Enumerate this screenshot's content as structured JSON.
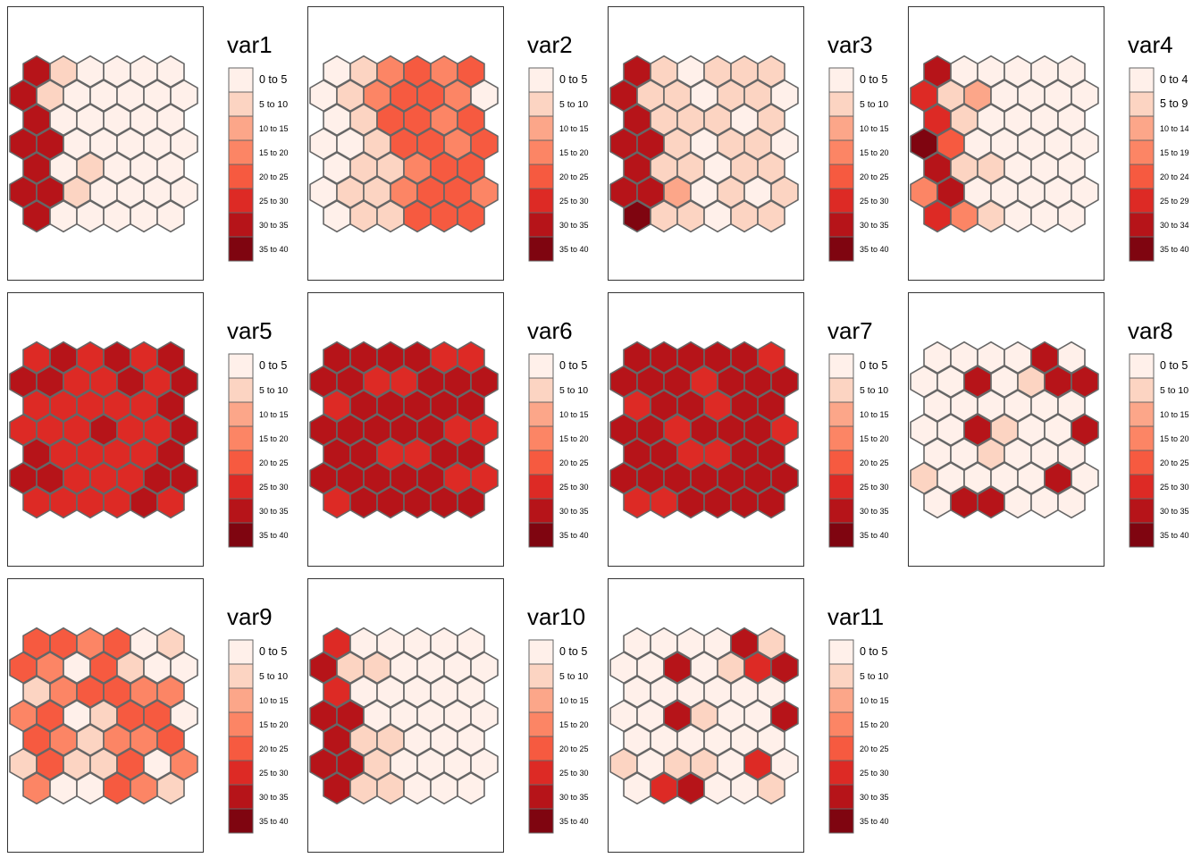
{
  "legend_bins": [
    "0 to 5",
    "5 to 10",
    "10 to 15",
    "15 to 20",
    "20 to 25",
    "25 to 30",
    "30 to 35",
    "35 to 40"
  ],
  "palette": [
    "#fff0ea",
    "#fcd4c2",
    "#fca689",
    "#fc8565",
    "#f65a40",
    "#dd2a25",
    "#b61419",
    "#7f0510"
  ],
  "chart_data": [
    {
      "type": "heatmap",
      "title": "var1",
      "legend": [
        "0 to 5",
        "5 to 10",
        "10 to 15",
        "15 to 20",
        "20 to 25",
        "25 to 30",
        "30 to 35",
        "35 to 40"
      ],
      "rows": [
        [
          6,
          1,
          0,
          0,
          0,
          0,
          0
        ],
        [
          6,
          1,
          0,
          0,
          0,
          0,
          0
        ],
        [
          6,
          0,
          0,
          0,
          0,
          0,
          0
        ],
        [
          6,
          6,
          0,
          0,
          0,
          0,
          0
        ],
        [
          6,
          0,
          1,
          0,
          0,
          0,
          0
        ],
        [
          6,
          6,
          1,
          0,
          0,
          0,
          0
        ],
        [
          6,
          0,
          0,
          0,
          0,
          0,
          0
        ]
      ]
    },
    {
      "type": "heatmap",
      "title": "var2",
      "legend": [
        "0 to 5",
        "5 to 10",
        "10 to 15",
        "15 to 20",
        "20 to 25",
        "25 to 30",
        "30 to 35",
        "35 to 40"
      ],
      "rows": [
        [
          0,
          1,
          3,
          4,
          3,
          4,
          0
        ],
        [
          0,
          1,
          3,
          4,
          4,
          3,
          0
        ],
        [
          0,
          1,
          4,
          4,
          3,
          4,
          0
        ],
        [
          0,
          0,
          1,
          4,
          4,
          3,
          4
        ],
        [
          0,
          1,
          1,
          3,
          4,
          4,
          0
        ],
        [
          0,
          1,
          1,
          3,
          4,
          4,
          3
        ],
        [
          0,
          1,
          1,
          4,
          4,
          4,
          0
        ]
      ]
    },
    {
      "type": "heatmap",
      "title": "var3",
      "legend": [
        "0 to 5",
        "5 to 10",
        "10 to 15",
        "15 to 20",
        "20 to 25",
        "25 to 30",
        "30 to 35",
        "35 to 40"
      ],
      "rows": [
        [
          6,
          1,
          0,
          1,
          1,
          1,
          0
        ],
        [
          6,
          1,
          1,
          0,
          1,
          1,
          0
        ],
        [
          6,
          1,
          1,
          1,
          0,
          1,
          0
        ],
        [
          6,
          6,
          1,
          0,
          1,
          1,
          0
        ],
        [
          6,
          1,
          1,
          0,
          1,
          1,
          0
        ],
        [
          6,
          6,
          2,
          0,
          1,
          0,
          1
        ],
        [
          7,
          1,
          1,
          0,
          1,
          1,
          0
        ]
      ]
    },
    {
      "type": "heatmap",
      "title": "var4",
      "legend": [
        "0 to 4",
        "5 to 9",
        "10 to 14",
        "15 to 19",
        "20 to 24",
        "25 to 29",
        "30 to 34",
        "35 to 40"
      ],
      "rows": [
        [
          6,
          0,
          0,
          0,
          0,
          0,
          0
        ],
        [
          5,
          1,
          2,
          0,
          0,
          0,
          0
        ],
        [
          5,
          1,
          0,
          0,
          0,
          0,
          0
        ],
        [
          7,
          4,
          0,
          0,
          0,
          0,
          0
        ],
        [
          6,
          1,
          1,
          0,
          0,
          0,
          0
        ],
        [
          3,
          6,
          0,
          0,
          0,
          0,
          0
        ],
        [
          5,
          3,
          1,
          0,
          0,
          0,
          0
        ]
      ]
    },
    {
      "type": "heatmap",
      "title": "var5",
      "legend": [
        "0 to 5",
        "5 to 10",
        "10 to 15",
        "15 to 20",
        "20 to 25",
        "25 to 30",
        "30 to 35",
        "35 to 40"
      ],
      "rows": [
        [
          5,
          6,
          5,
          6,
          5,
          6,
          0
        ],
        [
          6,
          6,
          5,
          5,
          6,
          5,
          6
        ],
        [
          5,
          5,
          5,
          5,
          5,
          6,
          0
        ],
        [
          5,
          5,
          5,
          6,
          5,
          5,
          6
        ],
        [
          6,
          5,
          5,
          5,
          5,
          6,
          0
        ],
        [
          6,
          6,
          5,
          5,
          5,
          6,
          6
        ],
        [
          5,
          5,
          5,
          5,
          6,
          5,
          0
        ]
      ]
    },
    {
      "type": "heatmap",
      "title": "var6",
      "legend": [
        "0 to 5",
        "5 to 10",
        "10 to 15",
        "15 to 20",
        "20 to 25",
        "25 to 30",
        "30 to 35",
        "35 to 40"
      ],
      "rows": [
        [
          6,
          6,
          6,
          6,
          5,
          5,
          0
        ],
        [
          6,
          6,
          5,
          5,
          6,
          6,
          6
        ],
        [
          5,
          6,
          6,
          6,
          6,
          6,
          0
        ],
        [
          6,
          6,
          6,
          6,
          6,
          5,
          5
        ],
        [
          6,
          6,
          5,
          5,
          6,
          6,
          0
        ],
        [
          6,
          6,
          6,
          6,
          6,
          5,
          5
        ],
        [
          5,
          6,
          6,
          6,
          6,
          6,
          0
        ]
      ]
    },
    {
      "type": "heatmap",
      "title": "var7",
      "legend": [
        "0 to 5",
        "5 to 10",
        "10 to 15",
        "15 to 20",
        "20 to 25",
        "25 to 30",
        "30 to 35",
        "35 to 40"
      ],
      "rows": [
        [
          6,
          6,
          6,
          6,
          6,
          5,
          0
        ],
        [
          6,
          6,
          6,
          5,
          6,
          6,
          6
        ],
        [
          5,
          6,
          6,
          5,
          6,
          6,
          0
        ],
        [
          6,
          6,
          5,
          6,
          6,
          6,
          5
        ],
        [
          6,
          6,
          5,
          5,
          6,
          6,
          0
        ],
        [
          6,
          6,
          6,
          6,
          6,
          6,
          6
        ],
        [
          5,
          5,
          6,
          6,
          6,
          6,
          0
        ]
      ]
    },
    {
      "type": "heatmap",
      "title": "var8",
      "legend": [
        "0 to 5",
        "5 to 10",
        "10 to 15",
        "15 to 20",
        "20 to 25",
        "25 to 30",
        "30 to 35",
        "35 to 40"
      ],
      "rows": [
        [
          0,
          0,
          0,
          0,
          6,
          0,
          0
        ],
        [
          0,
          0,
          6,
          0,
          1,
          6,
          6
        ],
        [
          0,
          0,
          0,
          0,
          0,
          0,
          0
        ],
        [
          0,
          0,
          6,
          1,
          0,
          0,
          6
        ],
        [
          0,
          0,
          1,
          0,
          0,
          0,
          0
        ],
        [
          1,
          0,
          0,
          0,
          0,
          6,
          0
        ],
        [
          0,
          6,
          6,
          0,
          0,
          0,
          0
        ]
      ]
    },
    {
      "type": "heatmap",
      "title": "var9",
      "legend": [
        "0 to 5",
        "5 to 10",
        "10 to 15",
        "15 to 20",
        "20 to 25",
        "25 to 30",
        "30 to 35",
        "35 to 40"
      ],
      "rows": [
        [
          4,
          4,
          3,
          4,
          0,
          1,
          0
        ],
        [
          4,
          3,
          0,
          4,
          1,
          0,
          0
        ],
        [
          1,
          3,
          4,
          4,
          3,
          3,
          0
        ],
        [
          3,
          4,
          0,
          1,
          4,
          4,
          0
        ],
        [
          4,
          3,
          1,
          3,
          3,
          4,
          0
        ],
        [
          1,
          4,
          1,
          1,
          4,
          0,
          3
        ],
        [
          3,
          0,
          0,
          4,
          3,
          1,
          0
        ]
      ]
    },
    {
      "type": "heatmap",
      "title": "var10",
      "legend": [
        "0 to 5",
        "5 to 10",
        "10 to 15",
        "15 to 20",
        "20 to 25",
        "25 to 30",
        "30 to 35",
        "35 to 40"
      ],
      "rows": [
        [
          5,
          0,
          0,
          0,
          0,
          0,
          0
        ],
        [
          6,
          1,
          1,
          0,
          0,
          0,
          0
        ],
        [
          5,
          0,
          0,
          0,
          0,
          0,
          0
        ],
        [
          6,
          6,
          0,
          0,
          0,
          0,
          0
        ],
        [
          6,
          1,
          1,
          0,
          0,
          0,
          0
        ],
        [
          6,
          6,
          1,
          0,
          0,
          0,
          0
        ],
        [
          6,
          1,
          1,
          0,
          0,
          0,
          0
        ]
      ]
    },
    {
      "type": "heatmap",
      "title": "var11",
      "legend": [
        "0 to 5",
        "5 to 10",
        "10 to 15",
        "15 to 20",
        "20 to 25",
        "25 to 30",
        "30 to 35",
        "35 to 40"
      ],
      "rows": [
        [
          0,
          0,
          0,
          0,
          6,
          1,
          0
        ],
        [
          0,
          0,
          6,
          0,
          1,
          5,
          6
        ],
        [
          0,
          0,
          0,
          0,
          0,
          0,
          0
        ],
        [
          0,
          0,
          6,
          1,
          0,
          0,
          6
        ],
        [
          0,
          0,
          0,
          0,
          0,
          0,
          0
        ],
        [
          1,
          0,
          1,
          1,
          0,
          5,
          0
        ],
        [
          0,
          5,
          6,
          0,
          0,
          1,
          0
        ]
      ]
    }
  ]
}
